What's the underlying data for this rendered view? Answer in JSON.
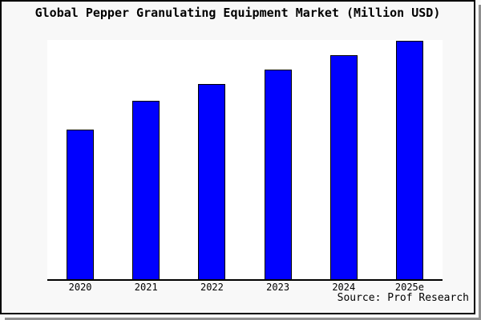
{
  "colors": {
    "bar_fill": "#0000ff",
    "bar_border": "#000000",
    "frame_background": "#f8f8f8",
    "plot_background": "#ffffff",
    "frame_border": "#000000",
    "shadow": "#8f8f8f"
  },
  "chart_data": {
    "type": "bar",
    "title": "Global Pepper Granulating Equipment Market (Million USD)",
    "categories": [
      "2020",
      "2021",
      "2022",
      "2023",
      "2024",
      "2025e"
    ],
    "values": [
      63,
      75,
      82,
      88,
      94,
      100
    ],
    "values_note": "y-axis has no ticks or labels; values estimated from bar heights relative to 2025e = 100",
    "xlabel": "",
    "ylabel": "",
    "ylim": [
      0,
      100
    ],
    "grid": false,
    "legend": "none",
    "source": "Source: Prof Research"
  }
}
